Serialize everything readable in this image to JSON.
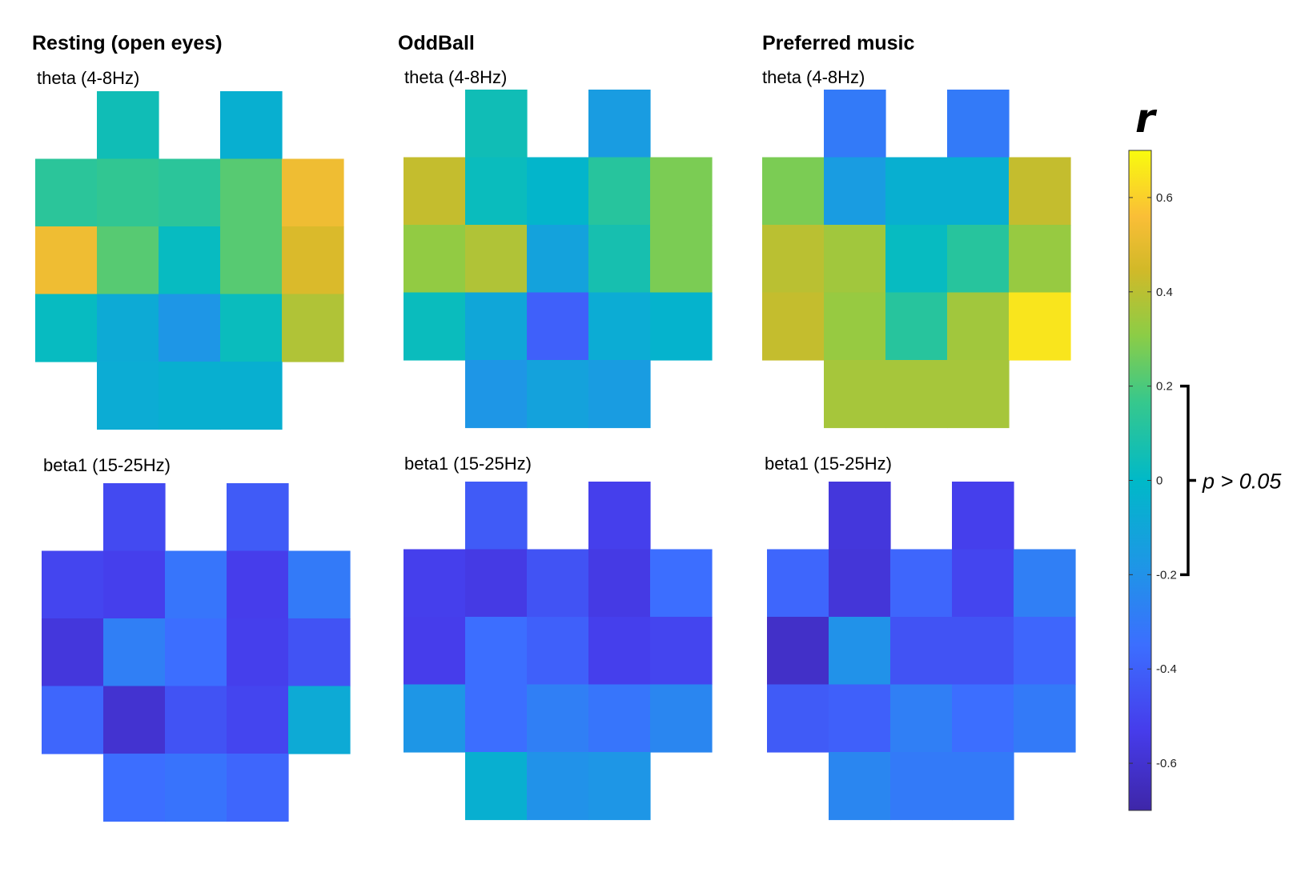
{
  "chart_data": {
    "type": "heatmap",
    "panels": [
      {
        "condition": "Resting (open eyes)",
        "band": "theta (4-8Hz)",
        "grid": [
          [
            null,
            0.05,
            null,
            -0.05,
            null
          ],
          [
            0.13,
            0.15,
            0.13,
            0.22,
            0.53
          ],
          [
            0.53,
            0.22,
            0.02,
            0.22,
            0.47
          ],
          [
            0.02,
            -0.08,
            -0.18,
            0.03,
            0.38
          ],
          [
            null,
            -0.07,
            -0.05,
            -0.05,
            null
          ]
        ]
      },
      {
        "condition": "OddBall",
        "band": "theta (4-8Hz)",
        "grid": [
          [
            null,
            0.05,
            null,
            -0.15,
            null
          ],
          [
            0.42,
            0.03,
            -0.02,
            0.12,
            0.28
          ],
          [
            0.32,
            0.38,
            -0.12,
            0.07,
            0.28
          ],
          [
            0.03,
            -0.1,
            -0.4,
            -0.07,
            -0.03
          ],
          [
            null,
            -0.18,
            -0.12,
            -0.15,
            null
          ]
        ]
      },
      {
        "condition": "Preferred music",
        "band": "theta (4-8Hz)",
        "grid": [
          [
            null,
            -0.3,
            null,
            -0.3,
            null
          ],
          [
            0.28,
            -0.15,
            -0.05,
            -0.05,
            0.42
          ],
          [
            0.4,
            0.35,
            0.02,
            0.12,
            0.33
          ],
          [
            0.42,
            0.33,
            0.12,
            0.35,
            0.65
          ],
          [
            null,
            0.36,
            0.36,
            0.36,
            null
          ]
        ]
      },
      {
        "condition": "Resting (open eyes)",
        "band": "beta1 (15-25Hz)",
        "grid": [
          [
            null,
            -0.48,
            null,
            -0.42,
            null
          ],
          [
            -0.5,
            -0.52,
            -0.32,
            -0.53,
            -0.3
          ],
          [
            -0.57,
            -0.28,
            -0.35,
            -0.52,
            -0.45
          ],
          [
            -0.38,
            -0.6,
            -0.45,
            -0.5,
            -0.08
          ],
          [
            null,
            -0.35,
            -0.33,
            -0.38,
            null
          ]
        ]
      },
      {
        "condition": "OddBall",
        "band": "beta1 (15-25Hz)",
        "grid": [
          [
            null,
            -0.42,
            null,
            -0.52,
            null
          ],
          [
            -0.52,
            -0.55,
            -0.45,
            -0.55,
            -0.35
          ],
          [
            -0.53,
            -0.35,
            -0.4,
            -0.52,
            -0.5
          ],
          [
            -0.18,
            -0.35,
            -0.28,
            -0.32,
            -0.25
          ],
          [
            null,
            -0.05,
            -0.2,
            -0.18,
            null
          ]
        ]
      },
      {
        "condition": "Preferred music",
        "band": "beta1 (15-25Hz)",
        "grid": [
          [
            null,
            -0.57,
            null,
            -0.52,
            null
          ],
          [
            -0.38,
            -0.58,
            -0.38,
            -0.5,
            -0.28
          ],
          [
            -0.62,
            -0.2,
            -0.45,
            -0.45,
            -0.38
          ],
          [
            -0.42,
            -0.4,
            -0.28,
            -0.35,
            -0.3
          ],
          [
            null,
            -0.25,
            -0.3,
            -0.3,
            null
          ]
        ]
      }
    ],
    "colorbar": {
      "label": "r",
      "range": [
        -0.7,
        0.7
      ],
      "ticks": [
        0.6,
        0.4,
        0.2,
        0,
        -0.2,
        -0.4,
        -0.6
      ],
      "tick_labels": [
        "0.6",
        "0.4",
        "0.2",
        "0",
        "-0.2",
        "-0.4",
        "-0.6"
      ],
      "colormap": "parula",
      "bracket_range": [
        -0.2,
        0.2
      ],
      "bracket_label": "p > 0.05"
    }
  }
}
